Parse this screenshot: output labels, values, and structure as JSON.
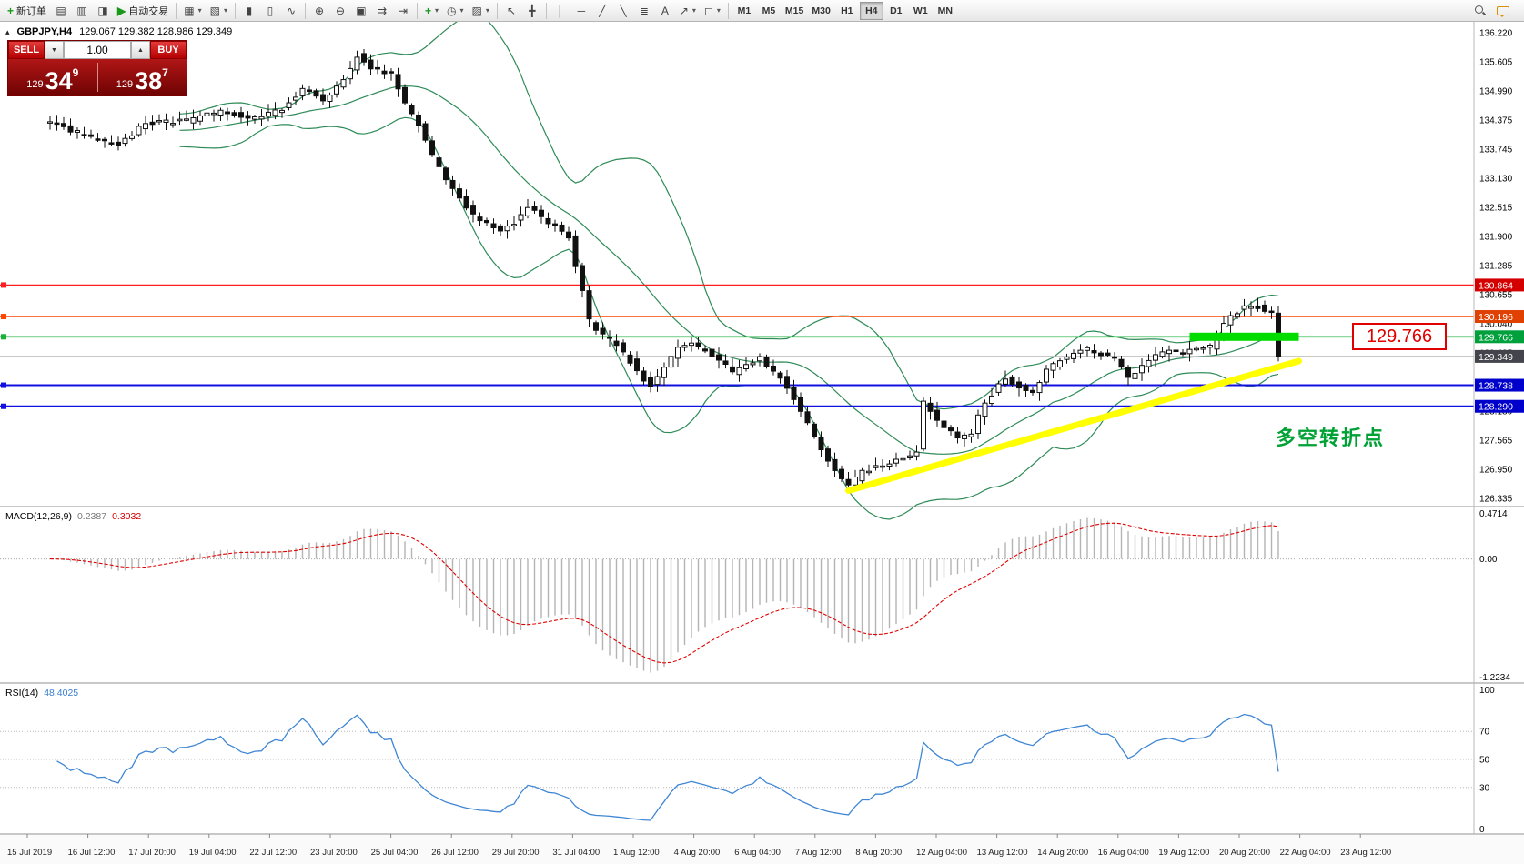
{
  "toolbar": {
    "new_order": "新订单",
    "auto_trading": "自动交易",
    "timeframes": [
      "M1",
      "M5",
      "M15",
      "M30",
      "H1",
      "H4",
      "D1",
      "W1",
      "MN"
    ]
  },
  "icons": {
    "plus": "+",
    "market_watch": "▤",
    "data_window": "▥",
    "navigator": "◨",
    "play": "▶",
    "new_chart": "▦",
    "profiles": "▧",
    "bar_chart": "▮",
    "candlestick": "▯",
    "line_chart": "∿",
    "zoom_in": "⊕",
    "zoom_out": "⊖",
    "tile": "▣",
    "auto_scroll": "⇉",
    "chart_shift": "⇥",
    "clock": "◷",
    "template": "▨",
    "cursor": "↖",
    "crosshair": "╋",
    "vline": "│",
    "hline": "─",
    "trendline": "╱",
    "channel": "╲",
    "fibo": "≣",
    "text_tool": "A",
    "arrow_tool": "↗",
    "shapes": "◻",
    "caret": "▾",
    "spin_up": "▲",
    "spin_down": "▼",
    "collapse": "▴"
  },
  "title": {
    "symbol": "GBPJPY,H4",
    "ohlc": "129.067 129.382 128.986 129.349"
  },
  "one_click": {
    "sell_label": "SELL",
    "buy_label": "BUY",
    "lot": "1.00",
    "sell_price": {
      "prefix": "129",
      "big": "34",
      "small": "9"
    },
    "buy_price": {
      "prefix": "129",
      "big": "38",
      "small": "7"
    }
  },
  "indicators": {
    "macd": {
      "label": "MACD(12,26,9)",
      "value_main": "0.2387",
      "value_signal": "0.3032",
      "axis": [
        "0.4714",
        "0.00",
        "-1.2234"
      ]
    },
    "rsi": {
      "label": "RSI(14)",
      "value": "48.4025",
      "axis": [
        "100",
        "70",
        "50",
        "30",
        "0"
      ],
      "levels": [
        70,
        50,
        30
      ]
    }
  },
  "annotation": {
    "text": "多空转折点",
    "color": "#00a236"
  },
  "callout": {
    "text": "129.766"
  },
  "chart_data": {
    "type": "candlestick",
    "symbol": "GBPJPY",
    "period": "H4",
    "current_price": "129.349",
    "price_axis_labels": [
      "136.220",
      "135.605",
      "134.990",
      "134.375",
      "133.745",
      "133.130",
      "132.515",
      "131.900",
      "131.285",
      "130.655",
      "130.040",
      "129.425",
      "128.810",
      "128.180",
      "127.565",
      "126.950",
      "126.335"
    ],
    "time_axis_labels": [
      "15 Jul 2019",
      "16 Jul 12:00",
      "17 Jul 20:00",
      "19 Jul 04:00",
      "22 Jul 12:00",
      "23 Jul 20:00",
      "25 Jul 04:00",
      "26 Jul 12:00",
      "29 Jul 20:00",
      "31 Jul 04:00",
      "1 Aug 12:00",
      "4 Aug 20:00",
      "6 Aug 04:00",
      "7 Aug 12:00",
      "8 Aug 20:00",
      "12 Aug 04:00",
      "13 Aug 12:00",
      "14 Aug 20:00",
      "16 Aug 04:00",
      "19 Aug 12:00",
      "20 Aug 20:00",
      "22 Aug 04:00",
      "23 Aug 12:00"
    ],
    "levels": [
      {
        "price": 130.864,
        "value": "130.864",
        "color": "#ff1e1e",
        "tag_bg": "#d40000",
        "style": "solid",
        "width": 1.4
      },
      {
        "price": 130.196,
        "value": "130.196",
        "color": "#ff4500",
        "tag_bg": "#e04000",
        "style": "solid",
        "width": 1.4
      },
      {
        "price": 129.766,
        "value": "129.766",
        "color": "#18b038",
        "tag_bg": "#00a03c",
        "style": "solid",
        "width": 1.6
      },
      {
        "price": 129.349,
        "value": "129.349",
        "color": "#a8a8a8",
        "tag_bg": "#44444c",
        "style": "solid",
        "width": 1,
        "current": true
      },
      {
        "price": 128.738,
        "value": "128.738",
        "color": "#1010e0",
        "tag_bg": "#0000cc",
        "style": "solid",
        "width": 2
      },
      {
        "price": 128.29,
        "value": "128.290",
        "color": "#1010e0",
        "tag_bg": "#0000cc",
        "style": "solid",
        "width": 2
      }
    ],
    "candle_count": 181,
    "price_path_anchors": [
      [
        0,
        134.35
      ],
      [
        6,
        134.05
      ],
      [
        11,
        133.85
      ],
      [
        15,
        134.3
      ],
      [
        21,
        134.35
      ],
      [
        26,
        134.55
      ],
      [
        31,
        134.4
      ],
      [
        35,
        134.6
      ],
      [
        38,
        135.05
      ],
      [
        41,
        134.8
      ],
      [
        44,
        135.2
      ],
      [
        46,
        135.75
      ],
      [
        48,
        135.45
      ],
      [
        51,
        135.35
      ],
      [
        53,
        134.7
      ],
      [
        55,
        134.25
      ],
      [
        57,
        133.6
      ],
      [
        59,
        133.1
      ],
      [
        61,
        132.7
      ],
      [
        63,
        132.35
      ],
      [
        65,
        132.2
      ],
      [
        67,
        132.0
      ],
      [
        69,
        132.2
      ],
      [
        71,
        132.55
      ],
      [
        73,
        132.3
      ],
      [
        75,
        132.1
      ],
      [
        77,
        131.9
      ],
      [
        79,
        130.7
      ],
      [
        80,
        130.1
      ],
      [
        82,
        129.8
      ],
      [
        84,
        129.6
      ],
      [
        86,
        129.25
      ],
      [
        88,
        128.85
      ],
      [
        89,
        128.75
      ],
      [
        91,
        129.1
      ],
      [
        93,
        129.5
      ],
      [
        95,
        129.65
      ],
      [
        97,
        129.45
      ],
      [
        99,
        129.3
      ],
      [
        101,
        129.0
      ],
      [
        103,
        129.2
      ],
      [
        105,
        129.3
      ],
      [
        106,
        129.1
      ],
      [
        108,
        128.9
      ],
      [
        110,
        128.45
      ],
      [
        112,
        127.9
      ],
      [
        114,
        127.35
      ],
      [
        116,
        126.95
      ],
      [
        118,
        126.6
      ],
      [
        120,
        126.9
      ],
      [
        122,
        127.0
      ],
      [
        124,
        127.05
      ],
      [
        126,
        127.2
      ],
      [
        128,
        127.35
      ],
      [
        129,
        128.35
      ],
      [
        130,
        128.2
      ],
      [
        132,
        127.85
      ],
      [
        134,
        127.6
      ],
      [
        136,
        127.7
      ],
      [
        137,
        128.1
      ],
      [
        139,
        128.55
      ],
      [
        141,
        128.9
      ],
      [
        143,
        128.7
      ],
      [
        145,
        128.55
      ],
      [
        147,
        129.05
      ],
      [
        149,
        129.3
      ],
      [
        151,
        129.4
      ],
      [
        153,
        129.5
      ],
      [
        155,
        129.4
      ],
      [
        157,
        129.3
      ],
      [
        159,
        128.9
      ],
      [
        161,
        129.15
      ],
      [
        163,
        129.4
      ],
      [
        165,
        129.5
      ],
      [
        167,
        129.45
      ],
      [
        169,
        129.5
      ],
      [
        171,
        129.55
      ],
      [
        173,
        130.05
      ],
      [
        175,
        130.3
      ],
      [
        177,
        130.45
      ],
      [
        179,
        130.35
      ],
      [
        180,
        130.3
      ],
      [
        181,
        129.35
      ]
    ],
    "bollinger": {
      "period": 20,
      "deviation": 2,
      "color": "#2e8b57"
    },
    "macd": {
      "fast": 12,
      "slow": 26,
      "signal": 9,
      "hist_color": "#b4b4b4",
      "signal_color": "#e00000",
      "range": [
        -1.2234,
        0.4714
      ]
    },
    "rsi": {
      "period": 14,
      "color": "#3f86d4",
      "range": [
        0,
        100
      ]
    },
    "trendline": {
      "from": [
        117,
        126.5
      ],
      "to": [
        183,
        129.25
      ],
      "color": "#ffff00",
      "width": 7
    },
    "highlight": {
      "from_i": 167,
      "to_i": 183,
      "price": 129.766,
      "color": "#00dc00",
      "height": 9
    }
  }
}
